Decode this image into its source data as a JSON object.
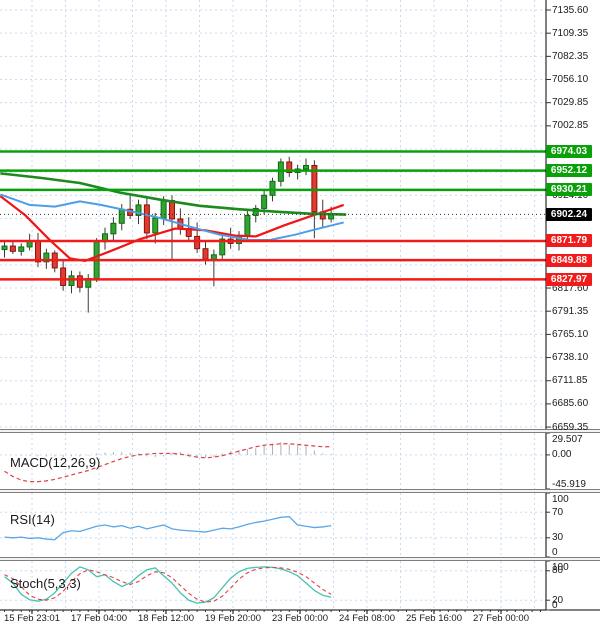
{
  "colors": {
    "grid": "#c9daf2",
    "bull_fill": "#33a433",
    "bull_border": "#0e6a0e",
    "bear_fill": "#df3b2f",
    "bear_border": "#8f0f0f",
    "wick": "#3a3a3a",
    "ma_fast_red": "#f21515",
    "ma_mid_blue": "#4d9de8",
    "ma_slow_green": "#1c8a1c",
    "resistance_green": "#0aa00a",
    "support_red": "#f21b1b",
    "current_black": "#000000",
    "macd_signal": "#e04040",
    "macd_hist": "#a8b2bd",
    "rsi_line": "#5aa7e8",
    "stoch_k": "#45c4ae",
    "stoch_d": "#e04040",
    "axis_line": "#000000"
  },
  "price_axis": {
    "ticks": [
      {
        "label": "7135.60",
        "slot": 0
      },
      {
        "label": "7109.35",
        "slot": 1
      },
      {
        "label": "7082.35",
        "slot": 2
      },
      {
        "label": "7056.10",
        "slot": 3
      },
      {
        "label": "7029.85",
        "slot": 4
      },
      {
        "label": "7002.85",
        "slot": 5
      },
      {
        "label": "6924.10",
        "slot": 8
      },
      {
        "label": "6897.10",
        "slot": 9
      },
      {
        "label": "6844.60",
        "slot": 11
      },
      {
        "label": "6817.60",
        "slot": 12
      },
      {
        "label": "6791.35",
        "slot": 13
      },
      {
        "label": "6765.10",
        "slot": 14
      },
      {
        "label": "6738.10",
        "slot": 15
      },
      {
        "label": "6711.85",
        "slot": 16
      },
      {
        "label": "6685.60",
        "slot": 17
      },
      {
        "label": "6659.35",
        "slot": 18
      }
    ]
  },
  "price_levels": [
    {
      "label": "6974.03",
      "value": 6974.03,
      "kind": "resistance"
    },
    {
      "label": "6952.12",
      "value": 6952.12,
      "kind": "resistance"
    },
    {
      "label": "6930.21",
      "value": 6930.21,
      "kind": "resistance"
    },
    {
      "label": "6902.24",
      "value": 6902.24,
      "kind": "current"
    },
    {
      "label": "6871.79",
      "value": 6871.79,
      "kind": "support"
    },
    {
      "label": "6849.88",
      "value": 6849.88,
      "kind": "support"
    },
    {
      "label": "6827.97",
      "value": 6827.97,
      "kind": "support"
    }
  ],
  "indicators": {
    "macd": {
      "label": "MACD(12,26,9)",
      "axis_labels": [
        {
          "text": "29.507",
          "value": 29.507
        },
        {
          "text": "0.00",
          "value": 0
        },
        {
          "text": "-45.919",
          "value": -45.919
        }
      ]
    },
    "rsi": {
      "label": "RSI(14)",
      "axis_labels": [
        {
          "text": "100",
          "value": 100
        },
        {
          "text": "70",
          "value": 70
        },
        {
          "text": "30",
          "value": 30
        },
        {
          "text": "0",
          "value": 0
        }
      ]
    },
    "stoch": {
      "label": "Stoch(5,3,3)",
      "axis_labels": [
        {
          "text": "100",
          "value": 100
        },
        {
          "text": "80",
          "value": 80
        },
        {
          "text": "20",
          "value": 20
        },
        {
          "text": "0",
          "value": 0
        }
      ]
    }
  },
  "chart_data": [
    {
      "type": "candlestick",
      "title": "Price pane with 3 moving averages, 3 green resistance lines, 3 red support lines, current price 6902.24",
      "ylim": [
        6657.1,
        7147.0
      ],
      "x_labels": [
        "15 Feb 23:01",
        "17 Feb 04:00",
        "18 Feb 12:00",
        "19 Feb 20:00",
        "23 Feb 00:00",
        "24 Feb 08:00",
        "25 Feb 16:00",
        "27 Feb 00:00"
      ],
      "candles": [
        [
          6862,
          6871,
          6853,
          6866
        ],
        [
          6866,
          6872,
          6857,
          6860
        ],
        [
          6860,
          6869,
          6855,
          6865
        ],
        [
          6865,
          6880,
          6861,
          6872
        ],
        [
          6872,
          6881,
          6842,
          6848
        ],
        [
          6848,
          6863,
          6840,
          6858
        ],
        [
          6858,
          6861,
          6836,
          6841
        ],
        [
          6841,
          6849,
          6815,
          6821
        ],
        [
          6821,
          6838,
          6812,
          6832
        ],
        [
          6832,
          6837,
          6813,
          6819
        ],
        [
          6819,
          6834,
          6790,
          6829
        ],
        [
          6829,
          6875,
          6825,
          6871
        ],
        [
          6871,
          6887,
          6862,
          6880
        ],
        [
          6880,
          6899,
          6872,
          6892
        ],
        [
          6892,
          6914,
          6884,
          6908
        ],
        [
          6908,
          6925,
          6897,
          6901
        ],
        [
          6901,
          6919,
          6891,
          6913
        ],
        [
          6913,
          6921,
          6874,
          6881
        ],
        [
          6881,
          6904,
          6869,
          6898
        ],
        [
          6898,
          6923,
          6890,
          6918
        ],
        [
          6918,
          6924,
          6851,
          6897
        ],
        [
          6897,
          6909,
          6879,
          6886
        ],
        [
          6886,
          6899,
          6871,
          6877
        ],
        [
          6877,
          6893,
          6858,
          6863
        ],
        [
          6863,
          6871,
          6845,
          6851
        ],
        [
          6851,
          6862,
          6820,
          6856
        ],
        [
          6856,
          6879,
          6849,
          6874
        ],
        [
          6874,
          6887,
          6863,
          6869
        ],
        [
          6869,
          6883,
          6861,
          6878
        ],
        [
          6878,
          6906,
          6871,
          6901
        ],
        [
          6901,
          6913,
          6893,
          6909
        ],
        [
          6909,
          6929,
          6902,
          6924
        ],
        [
          6924,
          6944,
          6917,
          6940
        ],
        [
          6940,
          6966,
          6934,
          6962
        ],
        [
          6962,
          6968,
          6945,
          6950
        ],
        [
          6950,
          6959,
          6942,
          6954
        ],
        [
          6954,
          6966,
          6947,
          6958
        ],
        [
          6958,
          6964,
          6875,
          6905
        ],
        [
          6905,
          6919,
          6886,
          6897
        ],
        [
          6897,
          6911,
          6893,
          6902.24
        ]
      ],
      "series": [
        {
          "name": "ma-fast-red",
          "color_key": "ma_fast_red",
          "width": 2.2,
          "points": [
            [
              -0.5,
              6923
            ],
            [
              2.5,
              6901
            ],
            [
              5.5,
              6872
            ],
            [
              7.8,
              6852
            ],
            [
              9.6,
              6849
            ],
            [
              12.6,
              6860
            ],
            [
              16.2,
              6874
            ],
            [
              20.4,
              6886
            ],
            [
              24,
              6884
            ],
            [
              27.5,
              6878
            ],
            [
              30,
              6877
            ],
            [
              33.5,
              6890
            ],
            [
              36.5,
              6900
            ],
            [
              39,
              6908
            ],
            [
              40.5,
              6913
            ]
          ]
        },
        {
          "name": "ma-mid-blue",
          "color_key": "ma_mid_blue",
          "width": 2,
          "points": [
            [
              -0.5,
              6925
            ],
            [
              3,
              6913
            ],
            [
              6,
              6911
            ],
            [
              9,
              6917
            ],
            [
              11.5,
              6913
            ],
            [
              15,
              6906
            ],
            [
              18.6,
              6898
            ],
            [
              22.2,
              6888
            ],
            [
              25.7,
              6879
            ],
            [
              29.3,
              6873
            ],
            [
              31.7,
              6873
            ],
            [
              34.7,
              6879
            ],
            [
              37.1,
              6885
            ],
            [
              40.5,
              6893
            ]
          ]
        },
        {
          "name": "ma-slow-green",
          "color_key": "ma_slow_green",
          "width": 2.6,
          "points": [
            [
              -0.5,
              6949
            ],
            [
              4.2,
              6944
            ],
            [
              9,
              6938
            ],
            [
              13.8,
              6927
            ],
            [
              18.6,
              6919
            ],
            [
              23.3,
              6912
            ],
            [
              28.1,
              6908
            ],
            [
              32.9,
              6905
            ],
            [
              36.5,
              6903
            ],
            [
              40.8,
              6902
            ]
          ]
        }
      ]
    },
    {
      "type": "macd",
      "title": "MACD(12,26,9)",
      "ylim": [
        -45.919,
        29.507
      ],
      "gridlines": [
        0
      ],
      "histogram": [
        0,
        0,
        -1,
        -1,
        -2,
        -2,
        -2,
        -3,
        -2,
        -2,
        -1,
        2,
        3,
        4,
        4,
        3,
        2,
        -2,
        -3,
        -2,
        3,
        4,
        2,
        -2,
        -4,
        -3,
        2,
        5,
        7,
        8,
        9,
        12,
        15,
        17,
        14,
        13,
        12,
        6,
        2,
        1
      ],
      "signal": [
        -22,
        -29,
        -34,
        -36,
        -36,
        -35,
        -33,
        -30,
        -27,
        -24,
        -21,
        -17,
        -13,
        -9,
        -5,
        -2,
        0,
        1,
        2,
        2,
        2,
        1,
        -1,
        -3,
        -4,
        -3,
        -1,
        2,
        5,
        8,
        11,
        13,
        14,
        15,
        15,
        14,
        13,
        12,
        11,
        11
      ]
    },
    {
      "type": "line",
      "title": "RSI(14)",
      "ylim": [
        0,
        100
      ],
      "gridlines": [
        70,
        30
      ],
      "values": [
        31,
        30,
        31,
        29,
        30,
        28,
        27,
        38,
        41,
        40,
        44,
        48,
        50,
        47,
        49,
        45,
        48,
        44,
        47,
        50,
        44,
        42,
        41,
        40,
        39,
        42,
        45,
        44,
        47,
        51,
        54,
        56,
        59,
        62,
        63,
        50,
        48,
        46,
        47,
        49
      ]
    },
    {
      "type": "line",
      "title": "Stoch(5,3,3)",
      "ylim": [
        0,
        100
      ],
      "gridlines": [
        80,
        20
      ],
      "series": [
        {
          "name": "%K",
          "dashed": false,
          "values": [
            68,
            55,
            32,
            21,
            18,
            22,
            35,
            55,
            75,
            88,
            82,
            68,
            72,
            58,
            48,
            55,
            70,
            82,
            86,
            70,
            55,
            35,
            20,
            14,
            16,
            25,
            45,
            65,
            78,
            85,
            87,
            88,
            87,
            84,
            78,
            70,
            55,
            40,
            30,
            26
          ]
        },
        {
          "name": "%D",
          "dashed": true,
          "values": [
            72,
            64,
            48,
            30,
            22,
            20,
            25,
            38,
            58,
            74,
            82,
            78,
            72,
            66,
            58,
            52,
            58,
            70,
            78,
            76,
            66,
            50,
            34,
            22,
            16,
            18,
            28,
            45,
            63,
            76,
            83,
            86,
            87,
            86,
            83,
            77,
            68,
            55,
            42,
            32
          ]
        }
      ]
    }
  ]
}
